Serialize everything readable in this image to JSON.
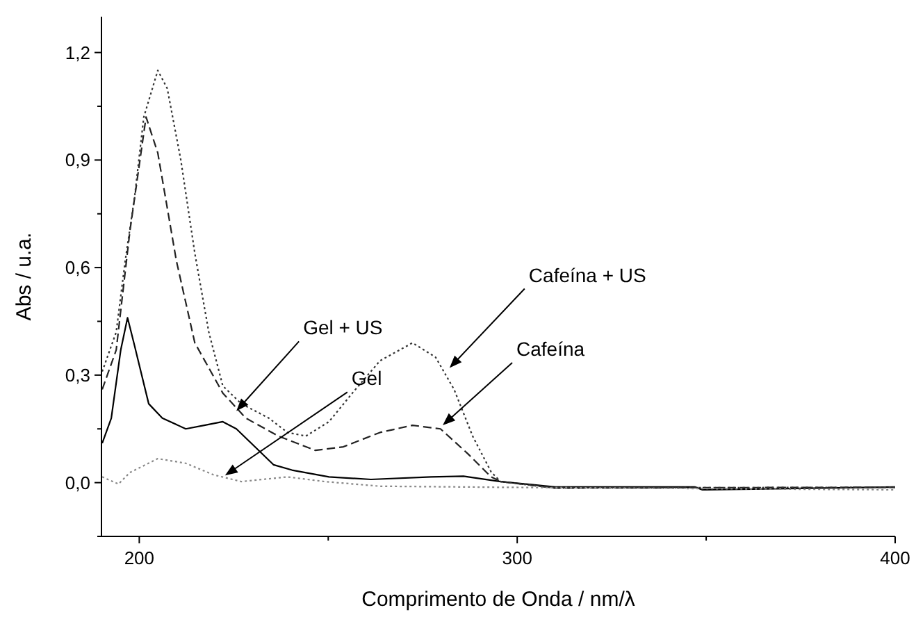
{
  "chart_data": {
    "type": "line",
    "xlabel": "Comprimento de Onda / nm/λ",
    "ylabel": "Abs / u.a.",
    "xlim": [
      190,
      400
    ],
    "ylim": [
      -0.15,
      1.3
    ],
    "xticks": [
      {
        "value": 200,
        "label": "200"
      },
      {
        "value": 250,
        "label": null
      },
      {
        "value": 300,
        "label": "300"
      },
      {
        "value": 350,
        "label": null
      },
      {
        "value": 400,
        "label": "400"
      }
    ],
    "yticks": [
      {
        "value": -0.15,
        "label": null
      },
      {
        "value": 0,
        "label": "0,0"
      },
      {
        "value": 0.15,
        "label": null
      },
      {
        "value": 0.3,
        "label": "0,3"
      },
      {
        "value": 0.45,
        "label": null
      },
      {
        "value": 0.6,
        "label": "0,6"
      },
      {
        "value": 0.75,
        "label": null
      },
      {
        "value": 0.9,
        "label": "0,9"
      },
      {
        "value": 1.05,
        "label": null
      },
      {
        "value": 1.2,
        "label": "1,2"
      }
    ],
    "grid": false,
    "marker": "none",
    "series": [
      {
        "color": "#000000",
        "line_style": "solid",
        "x": [
          190.2,
          192.6,
          195.1,
          196.9,
          198.8,
          202.5,
          206.1,
          212.3,
          217.2,
          222.1,
          225.7,
          230.6,
          235.5,
          240.4,
          250.2,
          261.3,
          277.2,
          285.8,
          295.6,
          310,
          347,
          349,
          400
        ],
        "values": [
          0.11,
          0.18,
          0.37,
          0.46,
          0.38,
          0.22,
          0.18,
          0.15,
          0.16,
          0.17,
          0.15,
          0.1,
          0.05,
          0.035,
          0.016,
          0.009,
          0.016,
          0.018,
          0.003,
          -0.012,
          -0.012,
          -0.02,
          -0.012
        ]
      },
      {
        "color": "#222222",
        "line_style": "dashed",
        "x": [
          190.2,
          193.9,
          197.5,
          201.8,
          204.9,
          209.8,
          214.7,
          222.1,
          228.2,
          236.8,
          246.6,
          254,
          263.7,
          272.3,
          279.7,
          287,
          293.1,
          295.6,
          310,
          400
        ],
        "values": [
          0.26,
          0.37,
          0.7,
          1.02,
          0.92,
          0.62,
          0.39,
          0.25,
          0.18,
          0.13,
          0.09,
          0.1,
          0.14,
          0.16,
          0.15,
          0.08,
          0.016,
          0.003,
          -0.015,
          -0.013
        ]
      },
      {
        "color": "#333333",
        "line_style": "dotted",
        "x": [
          190.2,
          193.9,
          196.3,
          198.8,
          201.2,
          204.9,
          207.4,
          211,
          214.7,
          218.4,
          222.1,
          227,
          234.3,
          239.2,
          244.1,
          250.2,
          256.4,
          263.7,
          272.3,
          278.4,
          283.3,
          288.2,
          293.1,
          295.6,
          310,
          400
        ],
        "values": [
          0.31,
          0.42,
          0.62,
          0.8,
          1.02,
          1.15,
          1.1,
          0.9,
          0.64,
          0.42,
          0.27,
          0.22,
          0.18,
          0.14,
          0.13,
          0.17,
          0.25,
          0.34,
          0.39,
          0.35,
          0.26,
          0.13,
          0.03,
          0.003,
          -0.015,
          -0.013
        ]
      },
      {
        "color": "#888888",
        "line_style": "dotted",
        "x": [
          190.2,
          194.5,
          197.5,
          204.9,
          212.3,
          219.6,
          227,
          239.2,
          249,
          263.7,
          295.6,
          400
        ],
        "values": [
          0.016,
          -0.004,
          0.028,
          0.067,
          0.054,
          0.022,
          0.003,
          0.016,
          0.003,
          -0.01,
          -0.013,
          -0.02
        ]
      }
    ],
    "annotations": [
      {
        "text": "Gel + US",
        "x": 225.7,
        "y": 0.2
      },
      {
        "text": "Gel",
        "x": 222.7,
        "y": 0.02
      },
      {
        "text": "Cafeína + US",
        "x": 282.1,
        "y": 0.32
      },
      {
        "text": "Cafeína",
        "x": 280.3,
        "y": 0.16
      }
    ]
  }
}
